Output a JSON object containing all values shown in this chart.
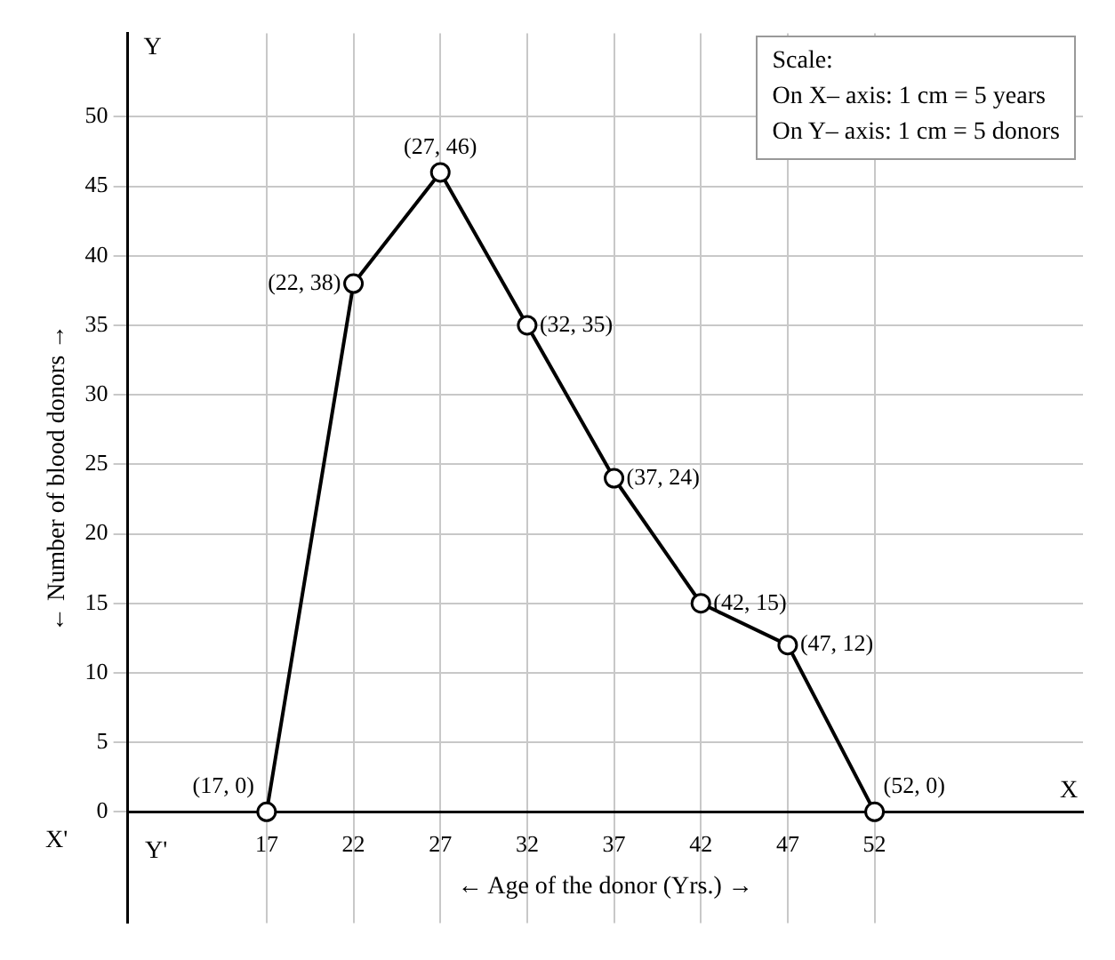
{
  "chart_data": {
    "type": "line",
    "xlabel": "← Age of the donor (Yrs.) →",
    "ylabel": "← Number of blood donors →",
    "x": [
      17,
      22,
      27,
      32,
      37,
      42,
      47,
      52
    ],
    "values": [
      0,
      38,
      46,
      35,
      24,
      15,
      12,
      0
    ],
    "value_labels": [
      "(17, 0)",
      "(22, 38)",
      "(27, 46)",
      "(32, 35)",
      "(37, 24)",
      "(42, 15)",
      "(47, 12)",
      "(52, 0)"
    ],
    "color": "#000000",
    "marker": "circle",
    "line_style": "solid",
    "grid": true,
    "legend": false,
    "xlim": [
      9,
      64
    ],
    "xticks": [
      17,
      22,
      27,
      32,
      37,
      42,
      47,
      52
    ],
    "ylim": [
      -8,
      56
    ],
    "yticks": [
      0,
      5,
      10,
      15,
      20,
      25,
      30,
      35,
      40,
      45,
      50
    ],
    "annotations": [
      "Scale:",
      "On X– axis: 1 cm = 5 years",
      "On Y– axis: 1 cm = 5 donors",
      "X",
      "X'",
      "Y",
      "Y'"
    ]
  }
}
